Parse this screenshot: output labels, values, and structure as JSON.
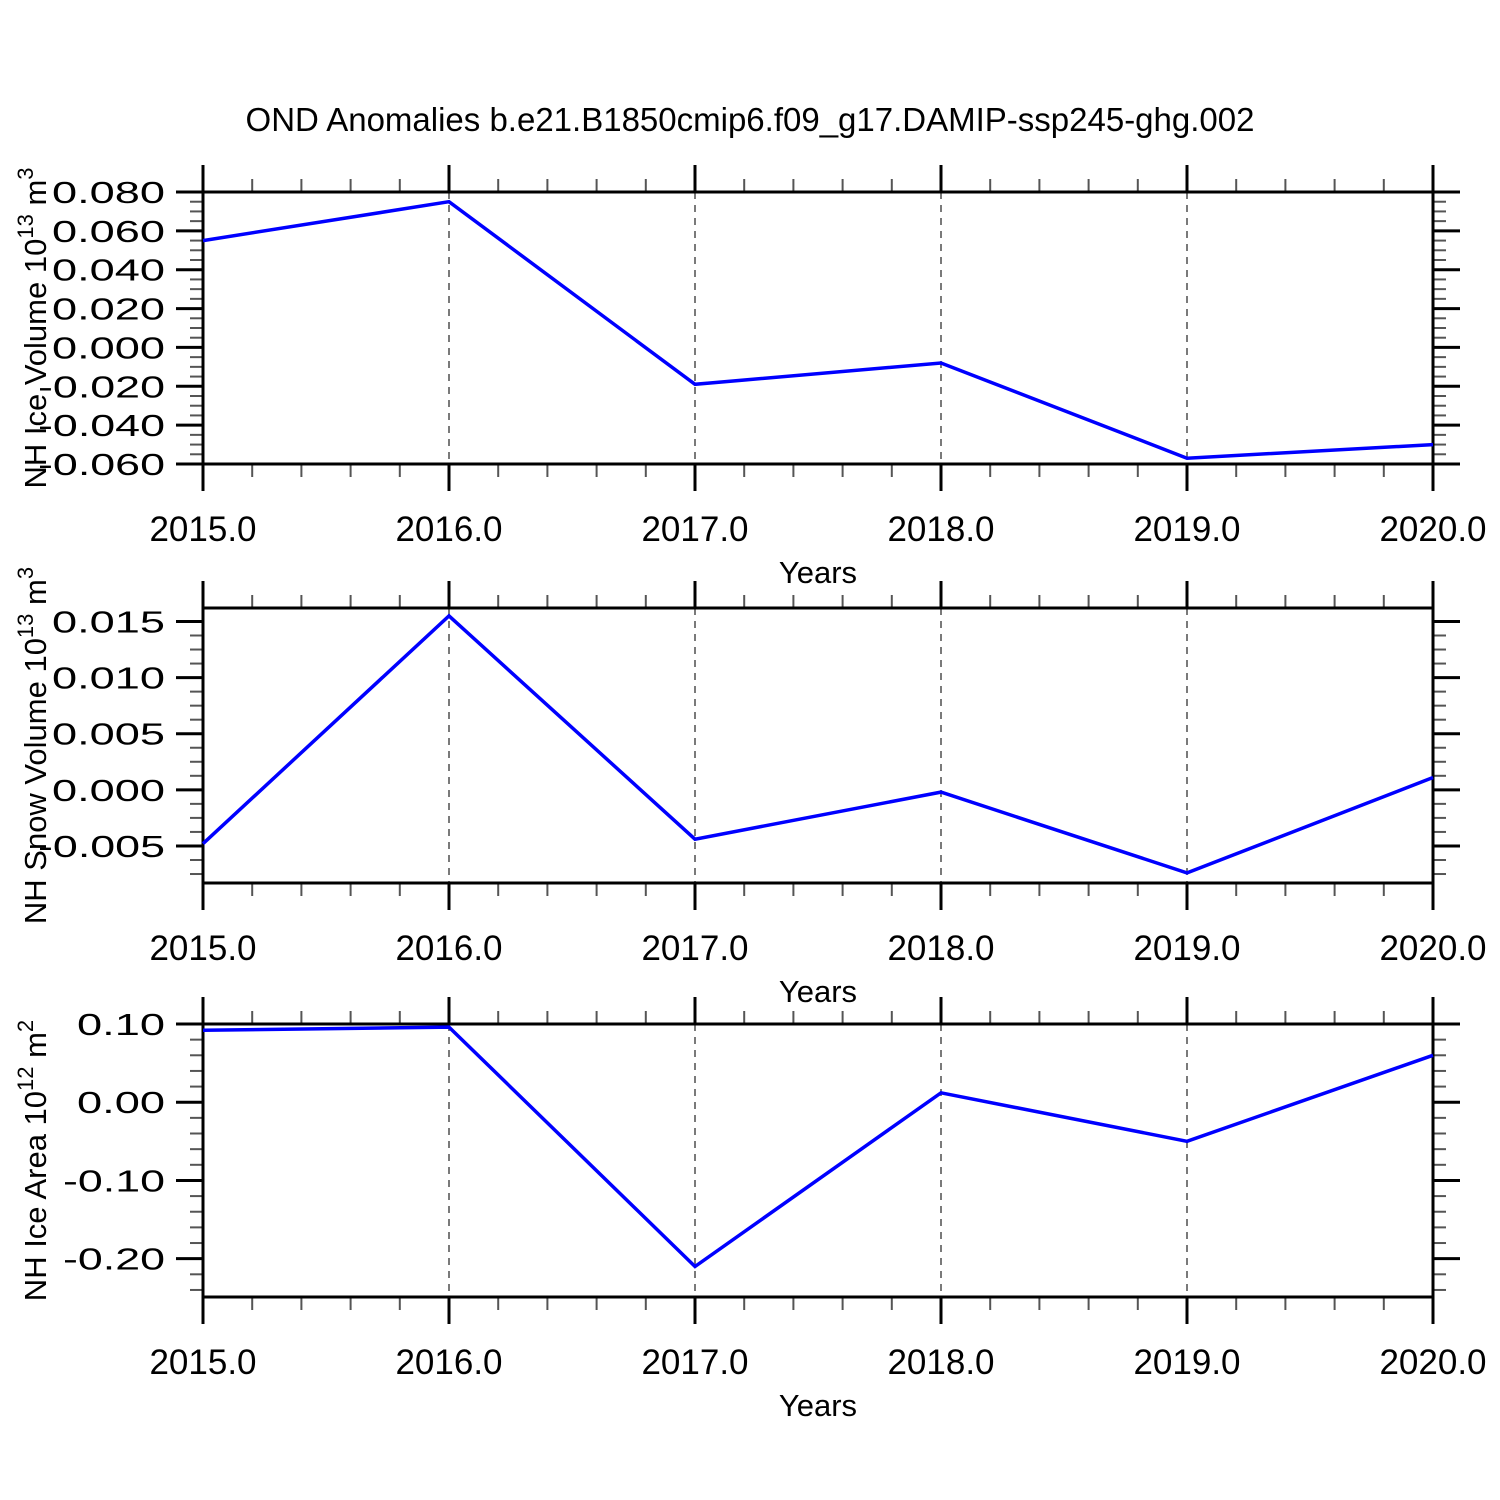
{
  "title": "OND Anomalies b.e21.B1850cmip6.f09_g17.DAMIP-ssp245-ghg.002",
  "colors": {
    "line": "#0000ff",
    "axis": "#000000",
    "major_tick": "#000000",
    "minor_tick": "#555555",
    "grid": "#7a7a7a",
    "background": "#ffffff"
  },
  "chart_data": [
    {
      "type": "line",
      "xlabel": "Years",
      "ylabel": "NH Ice Volume 10¹³ m³",
      "ylabel_parts": [
        {
          "t": "NH Ice Volume 10"
        },
        {
          "t": "13",
          "sup": true
        },
        {
          "t": " m"
        },
        {
          "t": "3",
          "sup": true
        }
      ],
      "x": [
        2015.0,
        2016.0,
        2017.0,
        2018.0,
        2019.0,
        2020.0
      ],
      "values": [
        0.055,
        0.075,
        -0.019,
        -0.008,
        -0.057,
        -0.05
      ],
      "xlim": [
        2015.0,
        2020.0
      ],
      "ylim": [
        -0.06,
        0.08
      ],
      "xticks": {
        "values": [
          2015,
          2016,
          2017,
          2018,
          2019,
          2020
        ],
        "labels": [
          "2015.0",
          "2016.0",
          "2017.0",
          "2018.0",
          "2019.0",
          "2020.0"
        ],
        "minor_step": 0.2
      },
      "yticks": {
        "values": [
          0.08,
          0.06,
          0.04,
          0.02,
          0.0,
          -0.02,
          -0.04,
          -0.06
        ],
        "labels": [
          "0.080",
          "0.060",
          "0.040",
          "0.020",
          "0.000",
          "-0.020",
          "-0.040",
          "-0.060"
        ],
        "minor_step": 0.005
      },
      "gridlines_x": [
        2016,
        2017,
        2018,
        2019
      ],
      "grid_style": "dashed",
      "legend": null
    },
    {
      "type": "line",
      "xlabel": "Years",
      "ylabel": "NH Snow Volume 10¹³ m³",
      "ylabel_parts": [
        {
          "t": "NH Snow Volume 10"
        },
        {
          "t": "13",
          "sup": true
        },
        {
          "t": " m"
        },
        {
          "t": "3",
          "sup": true
        }
      ],
      "x": [
        2015.0,
        2016.0,
        2017.0,
        2018.0,
        2019.0,
        2020.0
      ],
      "values": [
        -0.0048,
        0.0155,
        -0.0044,
        -0.0002,
        -0.0074,
        0.0011
      ],
      "xlim": [
        2015.0,
        2020.0
      ],
      "ylim": [
        -0.0083,
        0.0162
      ],
      "xticks": {
        "values": [
          2015,
          2016,
          2017,
          2018,
          2019,
          2020
        ],
        "labels": [
          "2015.0",
          "2016.0",
          "2017.0",
          "2018.0",
          "2019.0",
          "2020.0"
        ],
        "minor_step": 0.2
      },
      "yticks": {
        "values": [
          0.015,
          0.01,
          0.005,
          0.0,
          -0.005
        ],
        "labels": [
          "0.015",
          "0.010",
          "0.005",
          "0.000",
          "-0.005"
        ],
        "minor_step": 0.00125
      },
      "gridlines_x": [
        2016,
        2017,
        2018,
        2019
      ],
      "grid_style": "dashed",
      "legend": null
    },
    {
      "type": "line",
      "xlabel": "Years",
      "ylabel": "NH Ice Area 10¹² m²",
      "ylabel_parts": [
        {
          "t": "NH Ice Area 10"
        },
        {
          "t": "12",
          "sup": true
        },
        {
          "t": " m"
        },
        {
          "t": "2",
          "sup": true
        }
      ],
      "x": [
        2015.0,
        2016.0,
        2017.0,
        2018.0,
        2019.0,
        2020.0
      ],
      "values": [
        0.092,
        0.096,
        -0.21,
        0.012,
        -0.05,
        0.06
      ],
      "xlim": [
        2015.0,
        2020.0
      ],
      "ylim": [
        -0.249,
        0.1
      ],
      "xticks": {
        "values": [
          2015,
          2016,
          2017,
          2018,
          2019,
          2020
        ],
        "labels": [
          "2015.0",
          "2016.0",
          "2017.0",
          "2018.0",
          "2019.0",
          "2020.0"
        ],
        "minor_step": 0.2
      },
      "yticks": {
        "values": [
          0.1,
          0.0,
          -0.1,
          -0.2
        ],
        "labels": [
          "0.10",
          "0.00",
          "-0.10",
          "-0.20"
        ],
        "minor_step": 0.02
      },
      "gridlines_x": [
        2016,
        2017,
        2018,
        2019
      ],
      "grid_style": "dashed",
      "legend": null
    }
  ]
}
